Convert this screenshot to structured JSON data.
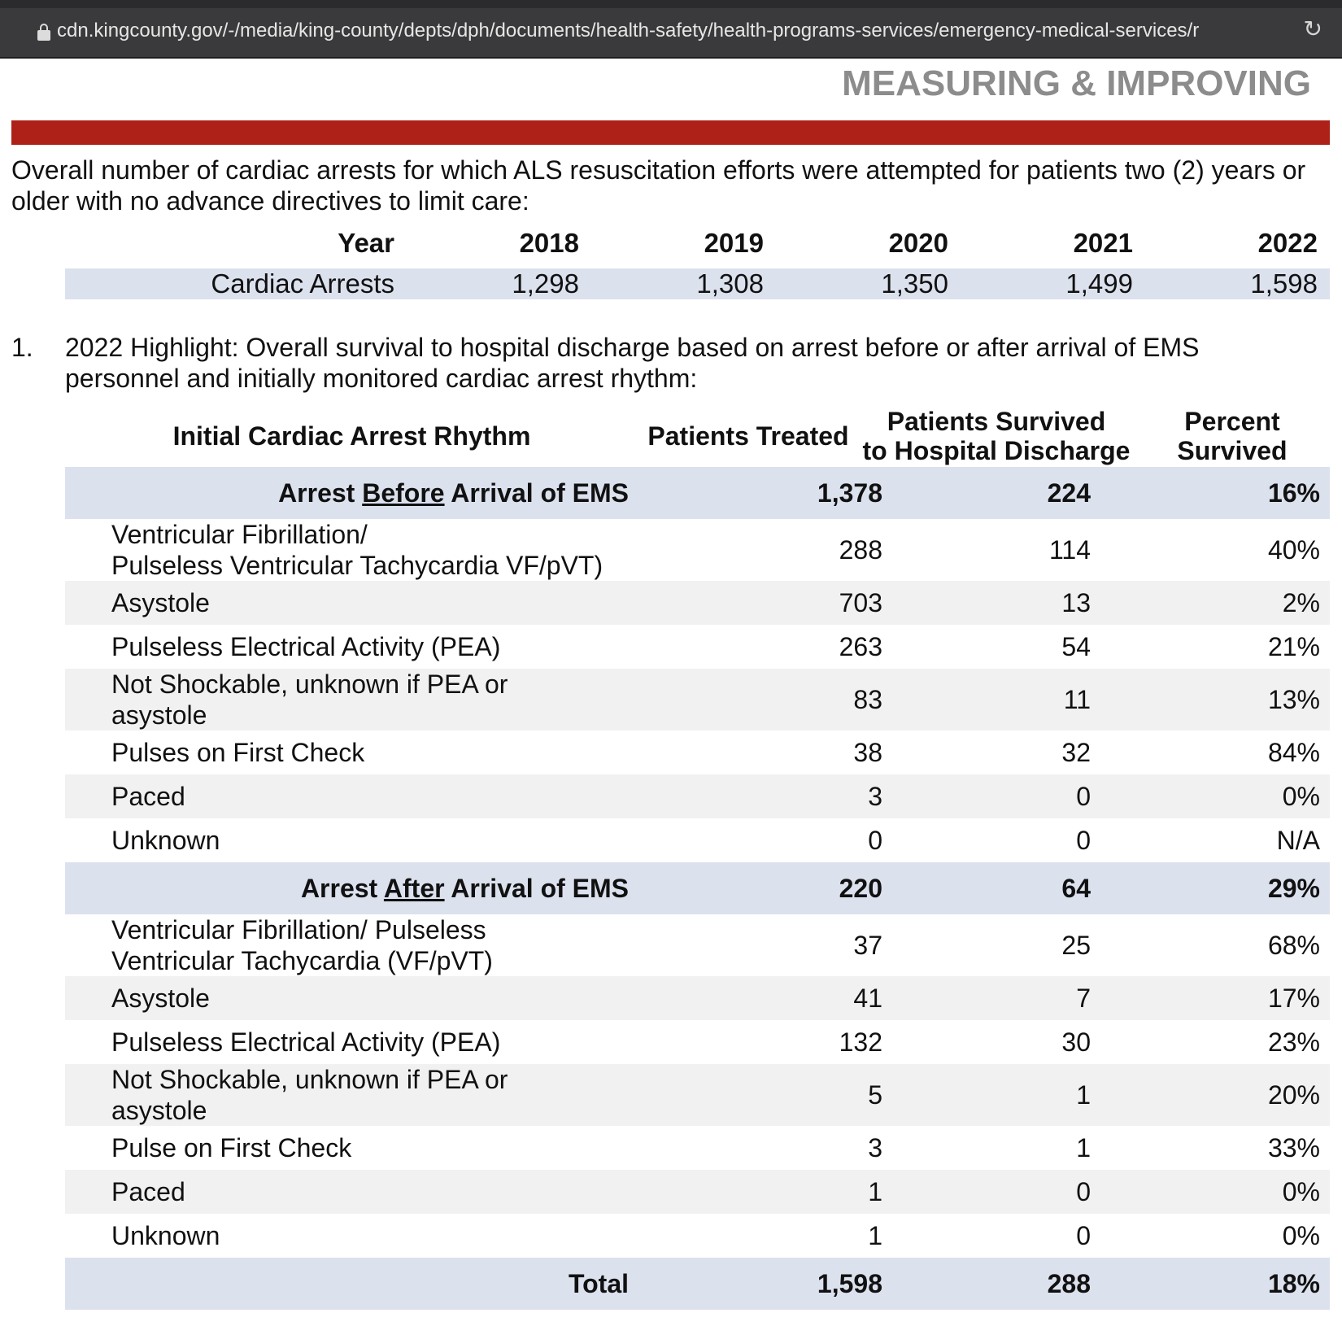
{
  "browser": {
    "url": "cdn.kingcounty.gov/-/media/king-county/depts/dph/documents/health-safety/health-programs-services/emergency-medical-services/r"
  },
  "heading": "MEASURING & IMPROVING",
  "intro": "Overall number of cardiac arrests for which ALS resuscitation efforts were attempted for patients two (2) years or older with no advance directives to limit care:",
  "year_table": {
    "header_label": "Year",
    "years": [
      "2018",
      "2019",
      "2020",
      "2021",
      "2022"
    ],
    "row_label": "Cardiac Arrests",
    "values": [
      "1,298",
      "1,308",
      "1,350",
      "1,499",
      "1,598"
    ]
  },
  "item": {
    "number": "1.",
    "text": "2022 Highlight: Overall survival to hospital discharge based on arrest before or after arrival of EMS personnel and initially monitored cardiac arrest rhythm:"
  },
  "survival_table": {
    "headers": {
      "rhythm": "Initial Cardiac Arrest Rhythm",
      "treated": "Patients Treated",
      "survived_line1": "Patients Survived",
      "survived_line2": "to Hospital Discharge",
      "percent_line1": "Percent",
      "percent_line2": "Survived"
    },
    "before": {
      "pre": "Arrest ",
      "emph": "Before",
      "post": " Arrival of EMS",
      "treated": "1,378",
      "survived": "224",
      "percent": "16%",
      "rows": [
        {
          "line1": "Ventricular Fibrillation/",
          "line2": "Pulseless Ventricular Tachycardia VF/pVT)",
          "treated": "288",
          "survived": "114",
          "percent": "40%"
        },
        {
          "line1": "Asystole",
          "treated": "703",
          "survived": "13",
          "percent": "2%"
        },
        {
          "line1": "Pulseless Electrical Activity (PEA)",
          "treated": "263",
          "survived": "54",
          "percent": "21%"
        },
        {
          "line1": "Not Shockable, unknown if PEA or",
          "line2": "asystole",
          "treated": "83",
          "survived": "11",
          "percent": "13%"
        },
        {
          "line1": "Pulses on First Check",
          "treated": "38",
          "survived": "32",
          "percent": "84%"
        },
        {
          "line1": "Paced",
          "treated": "3",
          "survived": "0",
          "percent": "0%"
        },
        {
          "line1": "Unknown",
          "treated": "0",
          "survived": "0",
          "percent": "N/A"
        }
      ]
    },
    "after": {
      "pre": "Arrest ",
      "emph": "After",
      "post": " Arrival of EMS",
      "treated": "220",
      "survived": "64",
      "percent": "29%",
      "rows": [
        {
          "line1": "Ventricular Fibrillation/ Pulseless",
          "line2": "Ventricular Tachycardia (VF/pVT)",
          "treated": "37",
          "survived": "25",
          "percent": "68%"
        },
        {
          "line1": "Asystole",
          "treated": "41",
          "survived": "7",
          "percent": "17%"
        },
        {
          "line1": "Pulseless Electrical Activity (PEA)",
          "treated": "132",
          "survived": "30",
          "percent": "23%"
        },
        {
          "line1": "Not Shockable, unknown if PEA or",
          "line2": "asystole",
          "treated": "5",
          "survived": "1",
          "percent": "20%"
        },
        {
          "line1": "Pulse on First Check",
          "treated": "3",
          "survived": "1",
          "percent": "33%"
        },
        {
          "line1": "Paced",
          "treated": "1",
          "survived": "0",
          "percent": "0%"
        },
        {
          "line1": "Unknown",
          "treated": "1",
          "survived": "0",
          "percent": "0%"
        }
      ]
    },
    "total": {
      "label": "Total",
      "treated": "1,598",
      "survived": "288",
      "percent": "18%"
    }
  }
}
